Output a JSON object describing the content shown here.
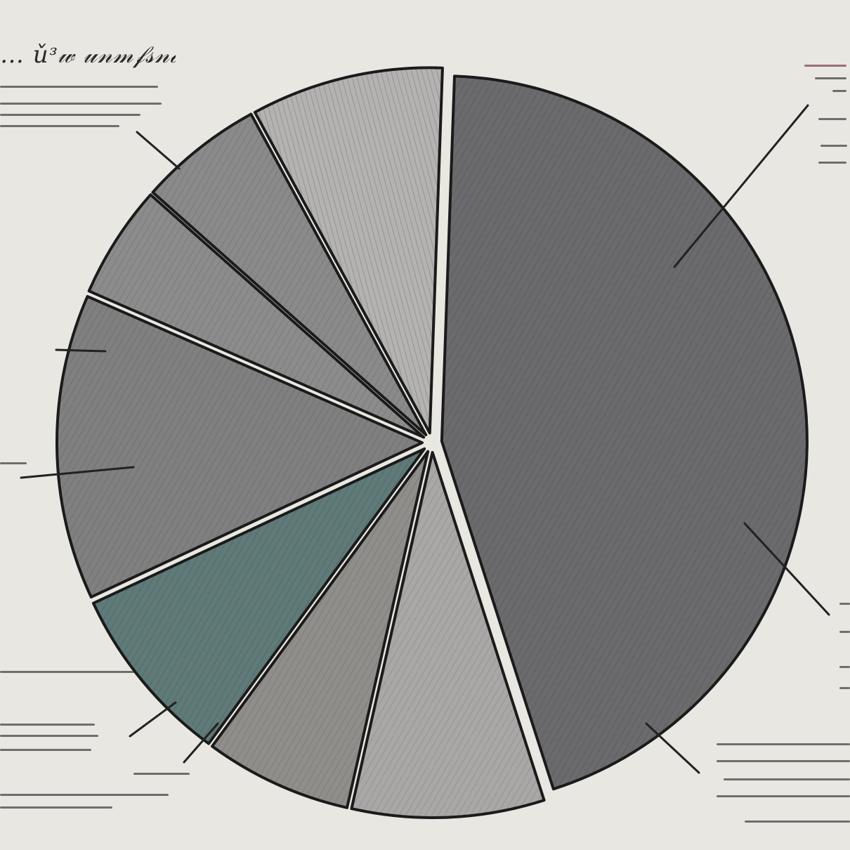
{
  "chart_data": {
    "type": "pie",
    "title": "",
    "hand_drawn": true,
    "legend": "none",
    "slices": [
      {
        "value": 44.5,
        "color": "#6b6b6e"
      },
      {
        "value": 8.5,
        "color": "#a9a8a6"
      },
      {
        "value": 6.5,
        "color": "#8f8e8b"
      },
      {
        "value": 8.0,
        "color": "#5f7a78"
      },
      {
        "value": 13.5,
        "color": "#808080"
      },
      {
        "value": 5.0,
        "color": "#8c8c8c"
      },
      {
        "value": 5.5,
        "color": "#8a8a8a"
      },
      {
        "value": 8.5,
        "color": "#b4b3b1"
      }
    ]
  }
}
